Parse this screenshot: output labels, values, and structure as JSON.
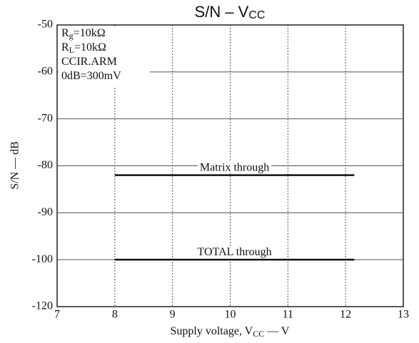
{
  "chart_data": {
    "type": "line",
    "title": [
      "S/N  –  V",
      "CC"
    ],
    "x_label": [
      "Supply voltage, V",
      "CC",
      " — V"
    ],
    "y_label": "S/N  —  dB",
    "notes": [
      [
        "R",
        "g",
        "=10kΩ"
      ],
      [
        "R",
        "L",
        "=10kΩ"
      ],
      [
        "CCIR.ARM"
      ],
      [
        "0dB=300mV"
      ]
    ],
    "xlim": [
      7,
      13
    ],
    "xticks": [
      7,
      8,
      9,
      10,
      11,
      12,
      13
    ],
    "ylim": [
      -120,
      -50
    ],
    "yticks": [
      -120,
      -100,
      -90,
      -80,
      -70,
      -60,
      -50
    ],
    "grid": true,
    "series": [
      {
        "name": "Matrix through",
        "color": "#111111",
        "x": [
          8,
          12.15
        ],
        "values": [
          -82,
          -82
        ]
      },
      {
        "name": "TOTAL through",
        "color": "#111111",
        "x": [
          8,
          12.15
        ],
        "values": [
          -100,
          -100
        ]
      }
    ]
  }
}
